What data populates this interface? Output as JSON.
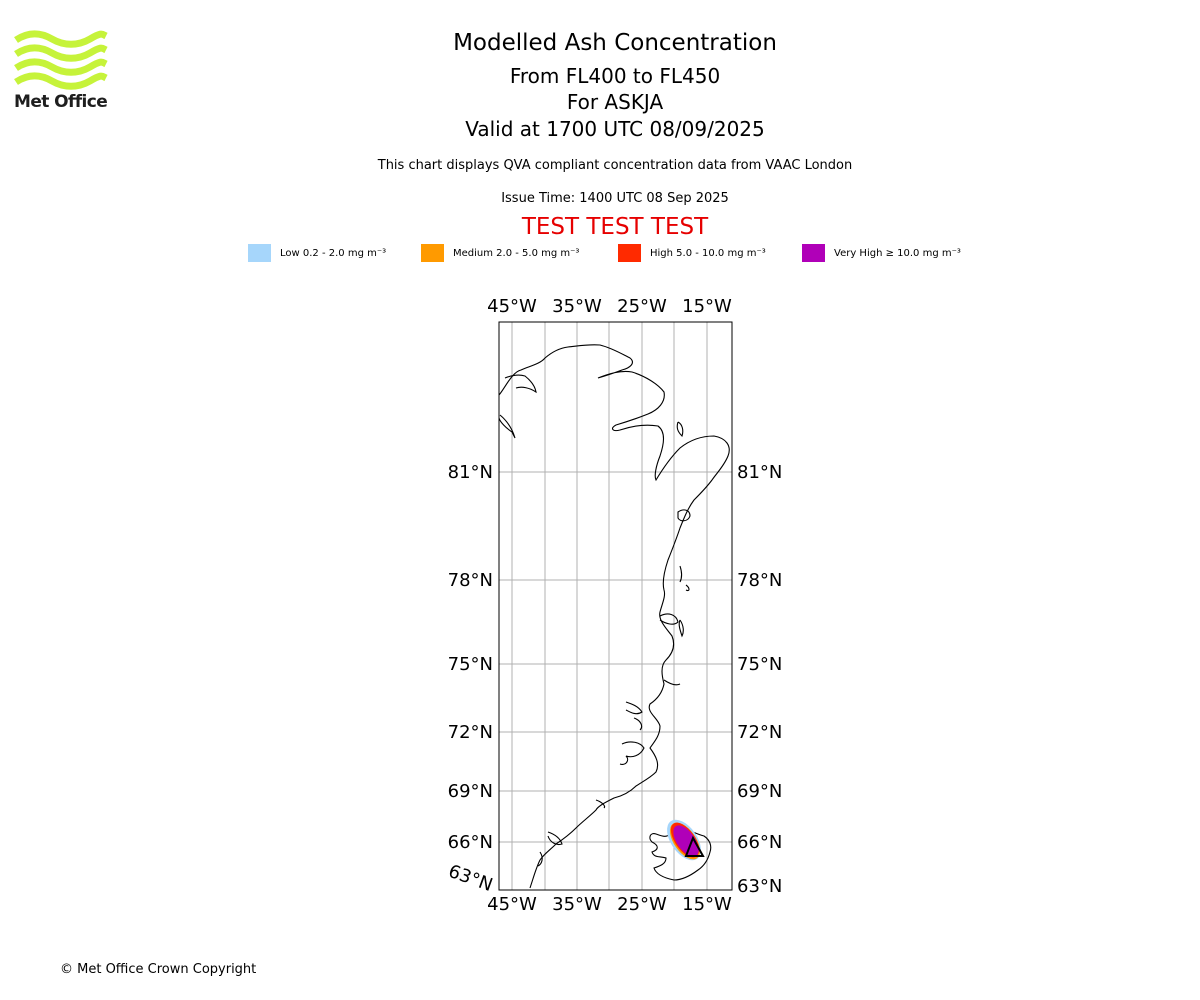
{
  "logo": {
    "text": "Met Office",
    "color": "#c6f33a",
    "icon": "met-office-wave-logo"
  },
  "titles": {
    "main": "Modelled Ash Concentration",
    "levels": "From FL400 to FL450",
    "volcano": "For ASKJA",
    "valid": "Valid at 1700 UTC 08/09/2025",
    "compliance": "This chart displays QVA compliant concentration data from VAAC London",
    "issue_time": "Issue Time: 1400 UTC 08 Sep 2025",
    "test_banner": "TEST TEST TEST"
  },
  "legend": [
    {
      "label": "Low 0.2 - 2.0 mg m⁻³",
      "color": "#a6d6fb"
    },
    {
      "label": "Medium 2.0 - 5.0 mg m⁻³",
      "color": "#ff9a00"
    },
    {
      "label": "High 5.0 - 10.0 mg m⁻³",
      "color": "#ff2a00"
    },
    {
      "label": "Very High ≥ 10.0 mg m⁻³",
      "color": "#b000b8"
    }
  ],
  "map": {
    "lon_labels": [
      "45°W",
      "35°W",
      "25°W",
      "15°W"
    ],
    "lat_labels": [
      "81°N",
      "78°N",
      "75°N",
      "72°N",
      "69°N",
      "66°N",
      "63°N"
    ],
    "volcano_marker": "triangle-icon"
  },
  "copyright": "© Met Office Crown Copyright"
}
